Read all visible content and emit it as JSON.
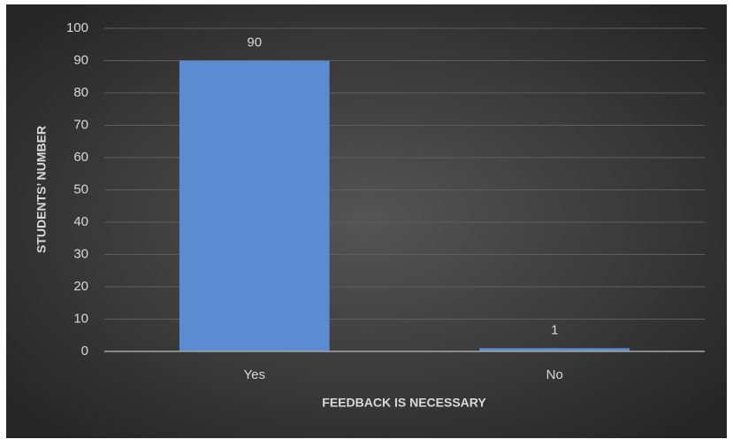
{
  "chart_data": {
    "type": "bar",
    "x_label": "FEEDBACK IS NECESSARY",
    "y_label": "STUDENTS’ NUMBER",
    "categories": [
      "Yes",
      "No"
    ],
    "values": [
      90,
      1
    ],
    "color": "#5b8bd0",
    "ylim": [
      0,
      100
    ],
    "yticks": [
      0,
      10,
      20,
      30,
      40,
      50,
      60,
      70,
      80,
      90,
      100
    ],
    "grid": true
  }
}
